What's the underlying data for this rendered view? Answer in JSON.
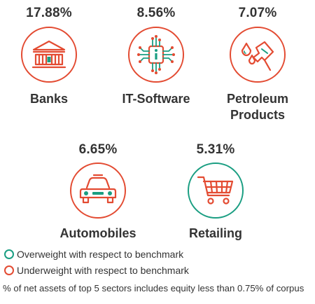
{
  "sectors": [
    {
      "percent": "17.88%",
      "name": "Banks",
      "icon": "bank-icon",
      "weighting": "underweight"
    },
    {
      "percent": "8.56%",
      "name": "IT-Software",
      "icon": "circuit-chip-icon",
      "weighting": "underweight"
    },
    {
      "percent": "7.07%",
      "name_line1": "Petroleum",
      "name_line2": "Products",
      "icon": "fuel-nozzle-icon",
      "weighting": "underweight"
    },
    {
      "percent": "6.65%",
      "name": "Automobiles",
      "icon": "car-icon",
      "weighting": "underweight"
    },
    {
      "percent": "5.31%",
      "name": "Retailing",
      "icon": "shopping-cart-icon",
      "weighting": "overweight"
    }
  ],
  "legend": {
    "overweight": "Overweight with respect to benchmark",
    "underweight": "Underweight with respect to benchmark"
  },
  "footnote": "% of net assets of top 5 sectors includes equity less than 0.75% of corpus",
  "colors": {
    "underweight": "#e34b32",
    "overweight": "#1a9e82",
    "icon_red": "#e34b32",
    "icon_green": "#1a9e82",
    "text": "#333333"
  }
}
